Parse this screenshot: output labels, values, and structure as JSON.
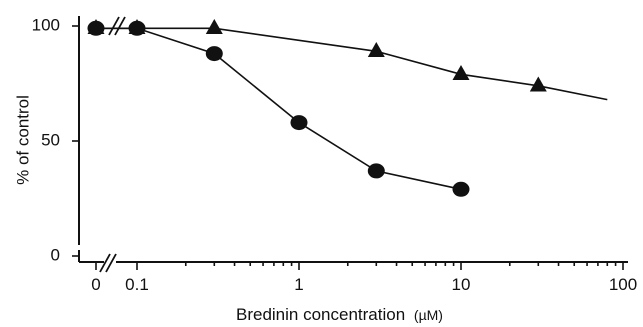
{
  "chart_data": {
    "type": "line",
    "title": "",
    "xlabel": "Bredinin  concentration",
    "xlabel_unit": "(µM)",
    "ylabel": "% of control",
    "x_scale": "log",
    "x_axis_break": true,
    "y_axis_break": true,
    "ylim": [
      0,
      100
    ],
    "xlim": [
      0.1,
      100
    ],
    "x_tick_labels": [
      "0",
      "0.1",
      "1",
      "10",
      "100"
    ],
    "y_tick_labels": [
      "0",
      "50",
      "100"
    ],
    "grid": false,
    "series": [
      {
        "marker": "circle",
        "color": "#111111",
        "x": [
          "0",
          "0.1",
          "0.3",
          "1",
          "3",
          "10"
        ],
        "values": [
          99,
          99,
          88,
          58,
          37,
          29
        ]
      },
      {
        "marker": "triangle",
        "color": "#111111",
        "x": [
          "0",
          "0.1",
          "0.3",
          "3",
          "10",
          "30"
        ],
        "values": [
          99,
          99,
          99,
          89,
          79,
          74
        ],
        "trend_line_to": {
          "x": 80,
          "y": 68
        }
      }
    ]
  }
}
